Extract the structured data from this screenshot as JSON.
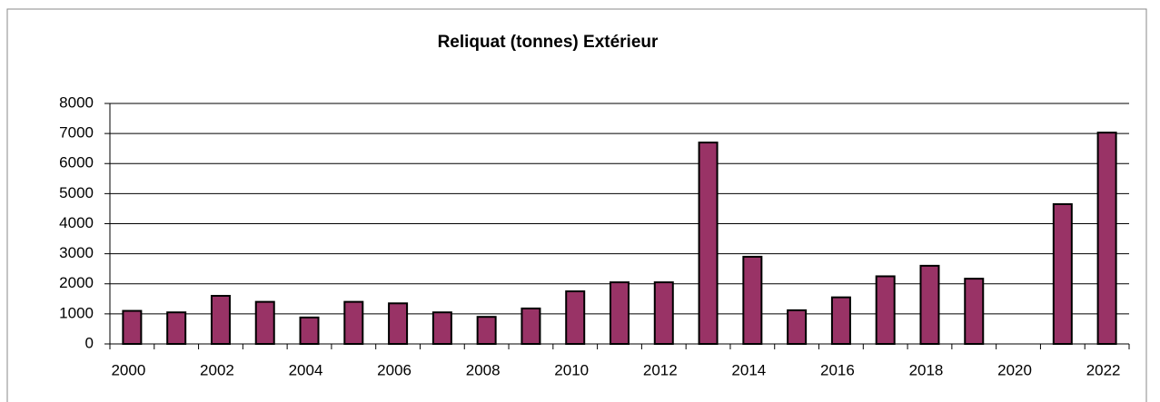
{
  "chart_data": {
    "type": "bar",
    "title": "Reliquat (tonnes) Extérieur",
    "categories": [
      "2000",
      null,
      "2002",
      null,
      "2004",
      null,
      "2006",
      null,
      "2008",
      null,
      "2010",
      null,
      "2012",
      null,
      "2014",
      null,
      "2016",
      null,
      "2018",
      null,
      "2020",
      null,
      "2022"
    ],
    "values": [
      1100,
      1050,
      1600,
      1400,
      880,
      1400,
      1350,
      1050,
      900,
      1180,
      1750,
      2050,
      2050,
      6700,
      2900,
      1120,
      1550,
      2250,
      2600,
      2170,
      null,
      4650,
      7030
    ],
    "color": "#993366",
    "ylim": [
      0,
      8000
    ],
    "yticks": [
      0,
      1000,
      2000,
      3000,
      4000,
      5000,
      6000,
      7000,
      8000
    ],
    "grid": true
  }
}
